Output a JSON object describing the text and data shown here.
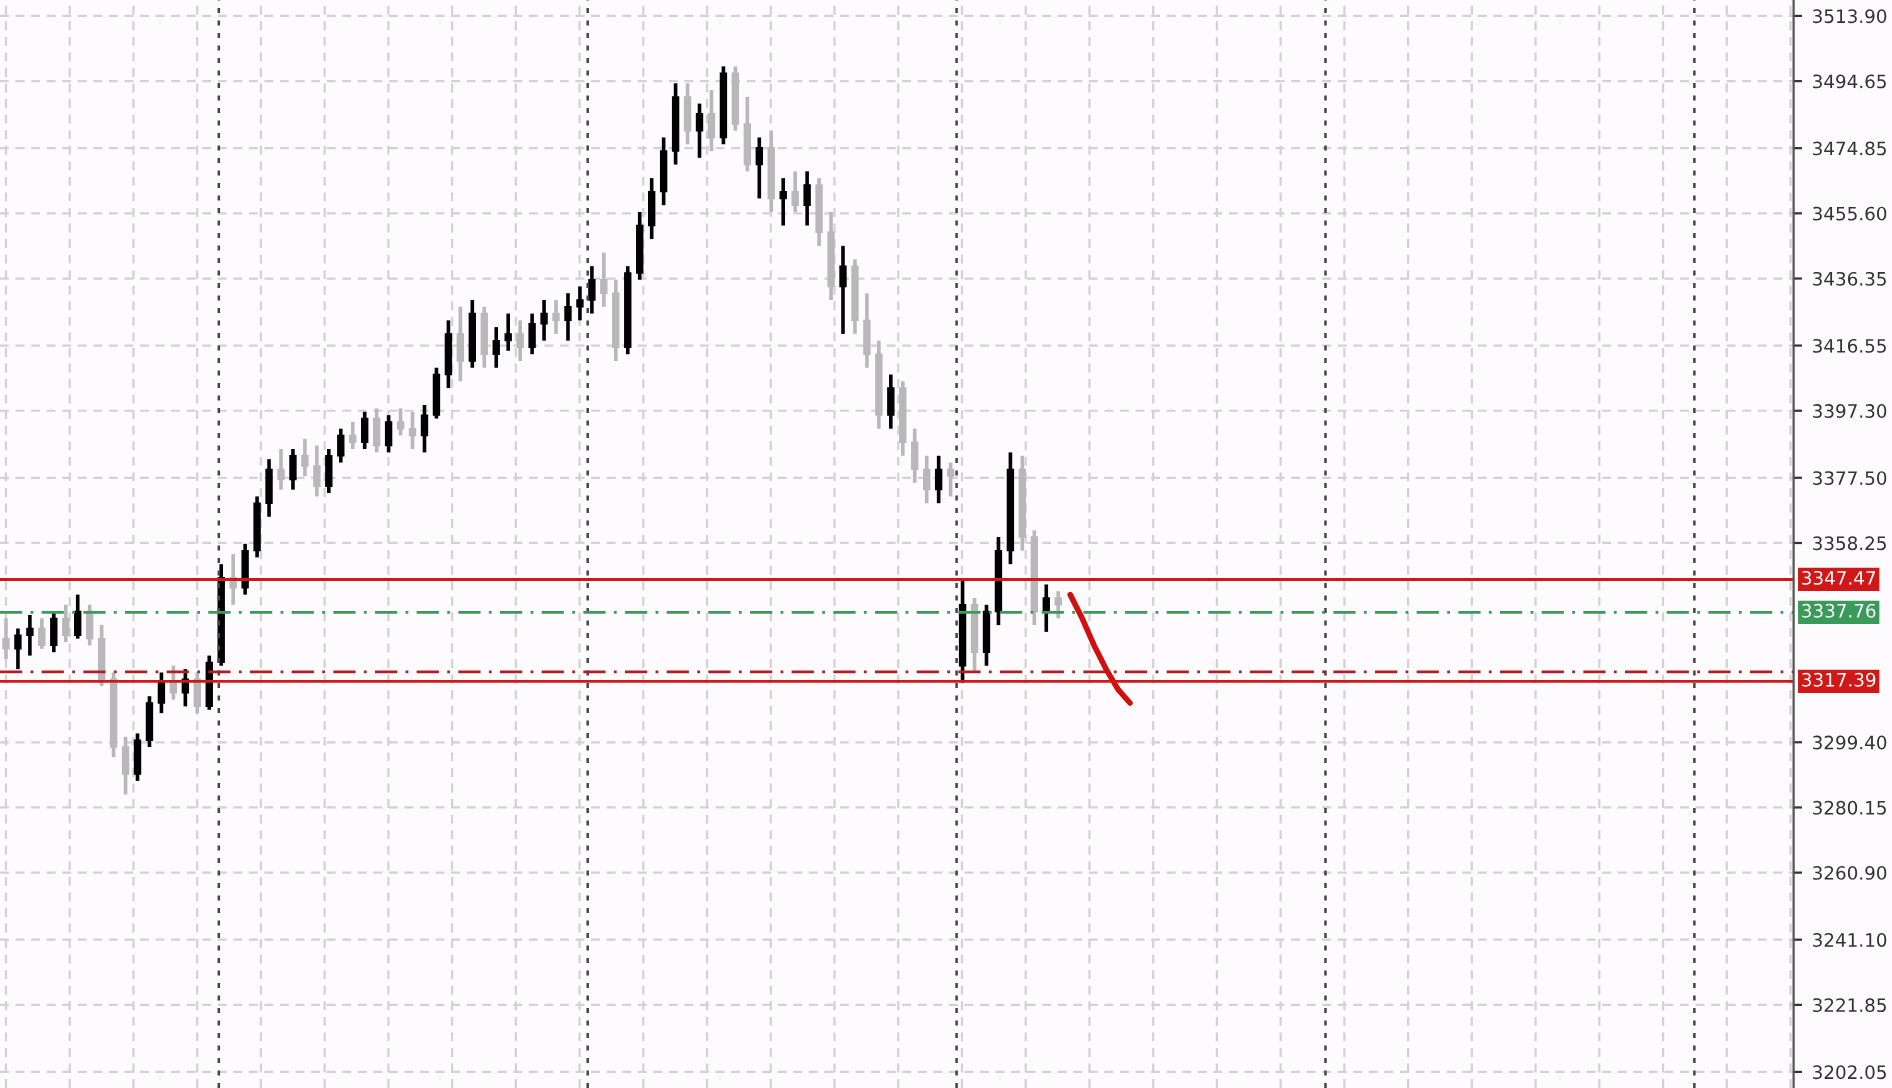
{
  "chart_data": {
    "type": "candlestick",
    "categories": [
      null,
      null,
      null,
      null,
      null,
      null,
      null,
      null,
      null,
      null,
      null,
      null,
      null,
      null,
      null,
      null,
      null,
      null,
      null,
      null,
      null,
      null,
      null,
      null,
      null,
      null,
      null,
      null,
      null,
      null,
      null,
      null,
      null,
      null,
      null,
      null,
      null,
      null,
      null,
      null,
      null,
      null,
      null,
      null,
      null,
      null,
      null,
      null,
      null,
      null,
      null,
      null,
      null,
      null,
      null,
      null,
      null,
      null,
      null,
      null,
      null,
      null,
      null,
      null,
      null,
      null,
      null,
      null,
      null,
      null,
      null,
      null,
      null,
      null,
      null,
      null,
      null,
      null,
      null,
      null,
      null,
      null,
      null,
      null,
      null,
      null,
      null,
      null,
      null,
      null,
      null,
      null,
      null,
      null,
      null,
      null,
      null,
      null,
      null,
      null,
      null,
      null,
      null,
      null,
      null,
      null,
      null,
      null,
      null,
      null,
      null,
      null,
      null,
      null,
      null,
      null,
      null,
      null,
      null,
      null,
      null,
      null,
      null,
      null,
      null,
      null,
      null,
      null,
      null,
      null,
      null,
      null,
      null,
      null,
      null,
      null,
      null,
      null,
      null,
      null,
      null,
      null,
      null,
      null,
      null,
      null,
      null,
      null,
      null,
      null
    ],
    "ohlc": [
      [
        3330,
        3336,
        3324,
        3327
      ],
      [
        3327,
        3333,
        3321,
        3331
      ],
      [
        3331,
        3337,
        3325,
        3333
      ],
      [
        3333,
        3336,
        3327,
        3328
      ],
      [
        3328,
        3338,
        3326,
        3336
      ],
      [
        3336,
        3340,
        3329,
        3331
      ],
      [
        3331,
        3343,
        3330,
        3338
      ],
      [
        3338,
        3340,
        3328,
        3330
      ],
      [
        3330,
        3334,
        3316,
        3318
      ],
      [
        3318,
        3320,
        3295,
        3298
      ],
      [
        3298,
        3301,
        3284,
        3290
      ],
      [
        3290,
        3302,
        3288,
        3300
      ],
      [
        3300,
        3313,
        3298,
        3311
      ],
      [
        3311,
        3320,
        3308,
        3317
      ],
      [
        3317,
        3322,
        3312,
        3314
      ],
      [
        3314,
        3321,
        3310,
        3318
      ],
      [
        3318,
        3320,
        3308,
        3310
      ],
      [
        3310,
        3325,
        3309,
        3323
      ],
      [
        3323,
        3352,
        3322,
        3348
      ],
      [
        3348,
        3355,
        3340,
        3345
      ],
      [
        3345,
        3358,
        3343,
        3356
      ],
      [
        3356,
        3372,
        3354,
        3370
      ],
      [
        3370,
        3383,
        3366,
        3380
      ],
      [
        3380,
        3386,
        3374,
        3377
      ],
      [
        3377,
        3386,
        3374,
        3384
      ],
      [
        3384,
        3389,
        3378,
        3381
      ],
      [
        3381,
        3387,
        3372,
        3375
      ],
      [
        3375,
        3386,
        3373,
        3384
      ],
      [
        3384,
        3392,
        3382,
        3390
      ],
      [
        3390,
        3394,
        3386,
        3388
      ],
      [
        3388,
        3397,
        3386,
        3395
      ],
      [
        3395,
        3398,
        3385,
        3387
      ],
      [
        3387,
        3396,
        3385,
        3394
      ],
      [
        3394,
        3398,
        3390,
        3392
      ],
      [
        3392,
        3397,
        3386,
        3390
      ],
      [
        3390,
        3399,
        3385,
        3396
      ],
      [
        3396,
        3410,
        3395,
        3408
      ],
      [
        3408,
        3424,
        3404,
        3420
      ],
      [
        3420,
        3428,
        3406,
        3412
      ],
      [
        3412,
        3430,
        3410,
        3426
      ],
      [
        3426,
        3428,
        3410,
        3414
      ],
      [
        3414,
        3422,
        3410,
        3418
      ],
      [
        3418,
        3426,
        3415,
        3420
      ],
      [
        3420,
        3424,
        3412,
        3416
      ],
      [
        3416,
        3426,
        3414,
        3423
      ],
      [
        3423,
        3430,
        3418,
        3426
      ],
      [
        3426,
        3430,
        3420,
        3424
      ],
      [
        3424,
        3432,
        3418,
        3428
      ],
      [
        3428,
        3434,
        3424,
        3430
      ],
      [
        3430,
        3440,
        3426,
        3436
      ],
      [
        3436,
        3444,
        3428,
        3432
      ],
      [
        3432,
        3436,
        3412,
        3416
      ],
      [
        3416,
        3440,
        3414,
        3438
      ],
      [
        3438,
        3456,
        3436,
        3452
      ],
      [
        3452,
        3466,
        3448,
        3462
      ],
      [
        3462,
        3478,
        3458,
        3474
      ],
      [
        3474,
        3494,
        3470,
        3490
      ],
      [
        3490,
        3494,
        3476,
        3480
      ],
      [
        3480,
        3488,
        3472,
        3485
      ],
      [
        3485,
        3492,
        3474,
        3478
      ],
      [
        3478,
        3499,
        3476,
        3497
      ],
      [
        3497,
        3499,
        3480,
        3482
      ],
      [
        3482,
        3490,
        3468,
        3470
      ],
      [
        3470,
        3478,
        3460,
        3475
      ],
      [
        3475,
        3480,
        3456,
        3460
      ],
      [
        3460,
        3466,
        3452,
        3462
      ],
      [
        3462,
        3468,
        3456,
        3458
      ],
      [
        3458,
        3468,
        3452,
        3464
      ],
      [
        3464,
        3466,
        3446,
        3450
      ],
      [
        3450,
        3456,
        3430,
        3434
      ],
      [
        3434,
        3446,
        3420,
        3440
      ],
      [
        3440,
        3442,
        3420,
        3424
      ],
      [
        3424,
        3432,
        3410,
        3414
      ],
      [
        3414,
        3418,
        3392,
        3396
      ],
      [
        3396,
        3408,
        3392,
        3404
      ],
      [
        3404,
        3406,
        3384,
        3388
      ],
      [
        3388,
        3392,
        3376,
        3380
      ],
      [
        3380,
        3384,
        3370,
        3374
      ],
      [
        3374,
        3384,
        3370,
        3380
      ],
      [
        3380,
        3382,
        3372,
        3378
      ],
      [
        3322,
        3347,
        3317,
        3340
      ],
      [
        3340,
        3342,
        3320,
        3326
      ],
      [
        3326,
        3340,
        3322,
        3338
      ],
      [
        3338,
        3360,
        3334,
        3356
      ],
      [
        3356,
        3385,
        3352,
        3380
      ],
      [
        3380,
        3384,
        3356,
        3360
      ],
      [
        3360,
        3362,
        3334,
        3338
      ],
      [
        3338,
        3346,
        3332,
        3342
      ],
      [
        3342,
        3344,
        3336,
        3340
      ],
      null,
      null,
      null,
      null,
      null,
      null,
      null,
      null,
      null,
      null,
      null,
      null,
      null,
      null,
      null,
      null,
      null,
      null,
      null,
      null,
      null,
      null,
      null,
      null,
      null,
      null,
      null,
      null,
      null,
      null,
      null,
      null,
      null,
      null,
      null,
      null,
      null,
      null,
      null,
      null,
      null,
      null,
      null,
      null,
      null,
      null,
      null,
      null,
      null,
      null,
      null,
      null,
      null,
      null,
      null,
      null,
      null,
      null,
      null,
      null,
      null
    ],
    "series": [
      {
        "type": "line",
        "color": "#d01010",
        "values": [
          null,
          null,
          null,
          null,
          null,
          null,
          null,
          null,
          null,
          null,
          null,
          null,
          null,
          null,
          null,
          null,
          null,
          null,
          null,
          null,
          null,
          null,
          null,
          null,
          null,
          null,
          null,
          null,
          null,
          null,
          null,
          null,
          null,
          null,
          null,
          null,
          null,
          null,
          null,
          null,
          null,
          null,
          null,
          null,
          null,
          null,
          null,
          null,
          null,
          null,
          null,
          null,
          null,
          null,
          null,
          null,
          null,
          null,
          null,
          null,
          null,
          null,
          null,
          null,
          null,
          null,
          null,
          null,
          null,
          null,
          null,
          null,
          null,
          null,
          null,
          null,
          null,
          null,
          null,
          null,
          null,
          null,
          null,
          null,
          null,
          null,
          null,
          null,
          null,
          3343,
          3336,
          3328,
          3321,
          3315,
          3311,
          null,
          null,
          null,
          null,
          null,
          null,
          null,
          null,
          null,
          null,
          null,
          null,
          null,
          null,
          null,
          null,
          null,
          null,
          null,
          null,
          null,
          null,
          null,
          null,
          null,
          null,
          null,
          null,
          null,
          null,
          null,
          null,
          null,
          null,
          null,
          null,
          null,
          null,
          null,
          null,
          null,
          null,
          null,
          null,
          null,
          null,
          null,
          null,
          null,
          null,
          null,
          null,
          null,
          null,
          null
        ]
      }
    ],
    "ylim": [
      3197.3,
      3518.6
    ],
    "yticks": [
      {
        "value": 3513.9,
        "label": "3513.90"
      },
      {
        "value": 3494.65,
        "label": "3494.65"
      },
      {
        "value": 3474.85,
        "label": "3474.85"
      },
      {
        "value": 3455.6,
        "label": "3455.60"
      },
      {
        "value": 3436.35,
        "label": "3436.35"
      },
      {
        "value": 3416.55,
        "label": "3416.55"
      },
      {
        "value": 3397.3,
        "label": "3397.30"
      },
      {
        "value": 3377.5,
        "label": "3377.50"
      },
      {
        "value": 3358.25,
        "label": "3358.25"
      },
      {
        "value": 3299.4,
        "label": "3299.40"
      },
      {
        "value": 3280.15,
        "label": "3280.15"
      },
      {
        "value": 3260.9,
        "label": "3260.90"
      },
      {
        "value": 3241.1,
        "label": "3241.10"
      },
      {
        "value": 3221.85,
        "label": "3221.85"
      },
      {
        "value": 3202.05,
        "label": "3202.05"
      }
    ],
    "ref_lines": [
      {
        "axis": "y",
        "value": 3347.47,
        "label": "3347.47",
        "color": "#d01818",
        "line_style": "solid"
      },
      {
        "axis": "y",
        "value": 3337.76,
        "label": "3337.76",
        "color": "#3a9a5a",
        "line_style": "dashed"
      },
      {
        "axis": "y",
        "value": 3320.2,
        "label": null,
        "color": "#b02020",
        "line_style": "dashed"
      },
      {
        "axis": "y",
        "value": 3317.39,
        "label": "3317.39",
        "color": "#d01818",
        "line_style": "solid"
      }
    ],
    "grid": true
  }
}
